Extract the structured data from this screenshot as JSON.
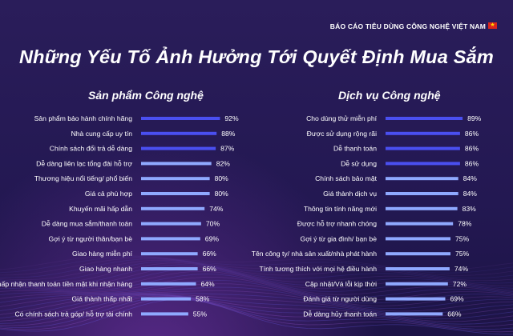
{
  "header": {
    "report_label": "BÁO CÁO TIÊU DÙNG CÔNG NGHỆ VIỆT NAM",
    "flag_icon": "vietnam-flag-icon"
  },
  "title": "Những Yếu Tố Ảnh Hưởng Tới Quyết Định Mua Sắm",
  "colors": {
    "background": "#24194f",
    "bar_blue": "#4a4ff0",
    "bar_light": "#8fa9ff",
    "text": "#ffffff"
  },
  "chart_data": [
    {
      "type": "bar",
      "orientation": "horizontal",
      "title": "Sản phẩm Công nghệ",
      "xlim": [
        0,
        100
      ],
      "categories": [
        "Sản phẩm bảo hành chính hãng",
        "Nhà cung cấp uy tín",
        "Chính sách đổi trả dễ dàng",
        "Dễ dàng liên lạc tổng đài hỗ trợ",
        "Thương hiệu nổi tiếng/ phổ biến",
        "Giá cả phù hợp",
        "Khuyến mãi hấp dẫn",
        "Dễ dàng mua sắm/thanh toán",
        "Gợi ý từ người thân/bạn bè",
        "Giao hàng miễn phí",
        "Giao hàng nhanh",
        "Chấp nhận thanh toán tiền mặt khi nhận hàng",
        "Giá thành thấp nhất",
        "Có chính sách trả góp/ hỗ trợ tài chính"
      ],
      "values": [
        92,
        88,
        87,
        82,
        80,
        80,
        74,
        70,
        69,
        66,
        66,
        64,
        58,
        55
      ],
      "labels": [
        "92%",
        "88%",
        "87%",
        "82%",
        "80%",
        "80%",
        "74%",
        "70%",
        "69%",
        "66%",
        "66%",
        "64%",
        "58%",
        "55%"
      ],
      "highlight_count": 3
    },
    {
      "type": "bar",
      "orientation": "horizontal",
      "title": "Dịch vụ Công nghệ",
      "xlim": [
        0,
        100
      ],
      "categories": [
        "Cho dùng thử miễn phí",
        "Được sử dụng rộng rãi",
        "Dễ thanh toán",
        "Dễ sử dụng",
        "Chính sách bảo mật",
        "Giá thành dịch vụ",
        "Thông tin tính năng mới",
        "Được hỗ trợ nhanh chóng",
        "Gợi ý từ gia đình/ bạn bè",
        "Tên công ty/ nhà sản xuất/nhà phát hành",
        "Tính tương thích với mọi hệ điều hành",
        "Cập nhật/Vá lỗi kịp thời",
        "Đánh giá từ người dùng",
        "Dễ dàng hủy thanh toán"
      ],
      "values": [
        89,
        86,
        86,
        86,
        84,
        84,
        83,
        78,
        75,
        75,
        74,
        72,
        69,
        66
      ],
      "labels": [
        "89%",
        "86%",
        "86%",
        "86%",
        "84%",
        "84%",
        "83%",
        "78%",
        "75%",
        "75%",
        "74%",
        "72%",
        "69%",
        "66%"
      ],
      "highlight_count": 4
    }
  ]
}
